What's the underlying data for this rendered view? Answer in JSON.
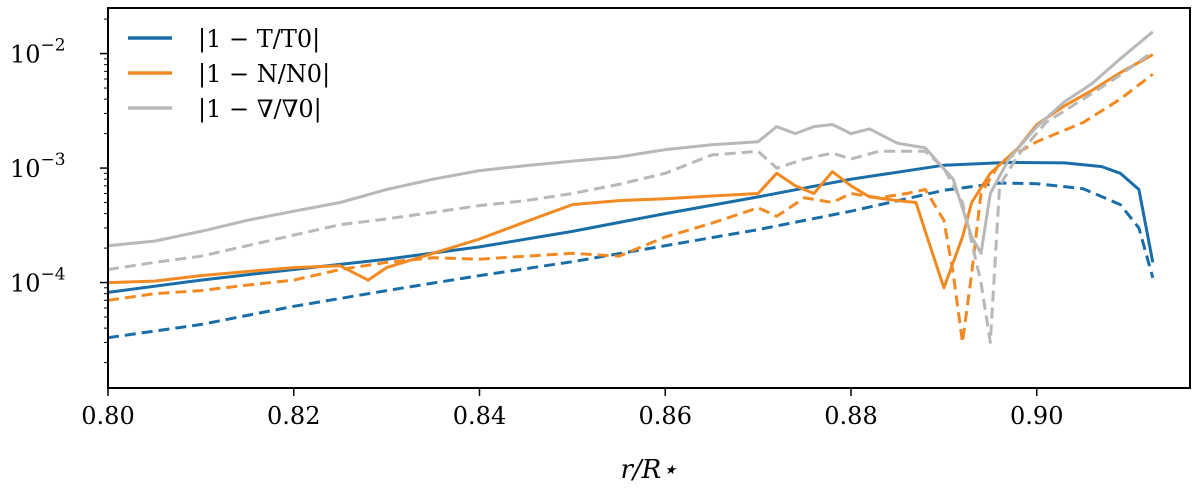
{
  "chart_data": {
    "type": "line",
    "title": "",
    "xlabel": "r/R⋆",
    "ylabel": "",
    "y_scale": "log",
    "xlim": [
      0.8,
      0.9165
    ],
    "ylim": [
      1.2e-05,
      0.025
    ],
    "grid": false,
    "legend_position": "top-left",
    "x_ticks": [
      "0.80",
      "0.82",
      "0.84",
      "0.86",
      "0.88",
      "0.90"
    ],
    "y_ticks": [
      {
        "base": "10",
        "exp": "−2"
      },
      {
        "base": "10",
        "exp": "−3"
      },
      {
        "base": "10",
        "exp": "−4"
      }
    ],
    "legend": [
      {
        "label": "|1 − T/T0|",
        "color": "#1a6ea8"
      },
      {
        "label": "|1 − N/N0|",
        "color": "#f28a24"
      },
      {
        "label": "|1 − ∇/∇0|",
        "color": "#b8b8b8"
      }
    ],
    "series": [
      {
        "name": "|1 − T/T0|",
        "style": "solid",
        "color": "#1a6ea8",
        "points": [
          [
            0.8,
            8.2e-05
          ],
          [
            0.81,
            0.000105
          ],
          [
            0.82,
            0.00013
          ],
          [
            0.83,
            0.00016
          ],
          [
            0.84,
            0.000205
          ],
          [
            0.85,
            0.00028
          ],
          [
            0.86,
            0.0004
          ],
          [
            0.87,
            0.00056
          ],
          [
            0.88,
            0.0008
          ],
          [
            0.89,
            0.00106
          ],
          [
            0.897,
            0.00112
          ],
          [
            0.903,
            0.00111
          ],
          [
            0.907,
            0.00103
          ],
          [
            0.909,
            0.0009
          ],
          [
            0.911,
            0.00065
          ],
          [
            0.9125,
            0.00015
          ]
        ]
      },
      {
        "name": "|1 − T/T0|",
        "style": "dashed",
        "color": "#1a6ea8",
        "points": [
          [
            0.8,
            3.3e-05
          ],
          [
            0.81,
            4.3e-05
          ],
          [
            0.82,
            6.2e-05
          ],
          [
            0.83,
            8.5e-05
          ],
          [
            0.84,
            0.000115
          ],
          [
            0.85,
            0.000152
          ],
          [
            0.86,
            0.00021
          ],
          [
            0.87,
            0.00029
          ],
          [
            0.88,
            0.00042
          ],
          [
            0.89,
            0.00064
          ],
          [
            0.896,
            0.00074
          ],
          [
            0.9,
            0.00073
          ],
          [
            0.905,
            0.00066
          ],
          [
            0.909,
            0.00048
          ],
          [
            0.911,
            0.0003
          ],
          [
            0.9125,
            0.00011
          ]
        ]
      },
      {
        "name": "|1 − N/N0|",
        "style": "solid",
        "color": "#f28a24",
        "points": [
          [
            0.8,
            0.0001
          ],
          [
            0.805,
            0.000103
          ],
          [
            0.81,
            0.000115
          ],
          [
            0.815,
            0.000125
          ],
          [
            0.82,
            0.000135
          ],
          [
            0.825,
            0.00014
          ],
          [
            0.828,
            0.000105
          ],
          [
            0.83,
            0.000135
          ],
          [
            0.835,
            0.00018
          ],
          [
            0.84,
            0.00024
          ],
          [
            0.845,
            0.00034
          ],
          [
            0.85,
            0.00048
          ],
          [
            0.855,
            0.00052
          ],
          [
            0.86,
            0.00054
          ],
          [
            0.865,
            0.00057
          ],
          [
            0.87,
            0.0006
          ],
          [
            0.872,
            0.0009
          ],
          [
            0.874,
            0.0007
          ],
          [
            0.876,
            0.0006
          ],
          [
            0.878,
            0.00093
          ],
          [
            0.88,
            0.0007
          ],
          [
            0.882,
            0.00056
          ],
          [
            0.885,
            0.00052
          ],
          [
            0.887,
            0.0005
          ],
          [
            0.888,
            0.00028
          ],
          [
            0.89,
            9e-05
          ],
          [
            0.891,
            0.00015
          ],
          [
            0.892,
            0.00025
          ],
          [
            0.893,
            0.0005
          ],
          [
            0.895,
            0.0009
          ],
          [
            0.898,
            0.0015
          ],
          [
            0.9,
            0.0024
          ],
          [
            0.903,
            0.0035
          ],
          [
            0.906,
            0.0048
          ],
          [
            0.909,
            0.0068
          ],
          [
            0.9125,
            0.0098
          ]
        ]
      },
      {
        "name": "|1 − N/N0|",
        "style": "dashed",
        "color": "#f28a24",
        "points": [
          [
            0.8,
            7e-05
          ],
          [
            0.805,
            8e-05
          ],
          [
            0.81,
            8.5e-05
          ],
          [
            0.815,
            9.5e-05
          ],
          [
            0.82,
            0.000105
          ],
          [
            0.825,
            0.00013
          ],
          [
            0.83,
            0.00015
          ],
          [
            0.835,
            0.000165
          ],
          [
            0.84,
            0.00016
          ],
          [
            0.845,
            0.00017
          ],
          [
            0.85,
            0.00018
          ],
          [
            0.855,
            0.00017
          ],
          [
            0.86,
            0.00025
          ],
          [
            0.865,
            0.00033
          ],
          [
            0.87,
            0.00045
          ],
          [
            0.872,
            0.00038
          ],
          [
            0.875,
            0.00055
          ],
          [
            0.878,
            0.0005
          ],
          [
            0.88,
            0.0006
          ],
          [
            0.883,
            0.00055
          ],
          [
            0.886,
            0.0006
          ],
          [
            0.888,
            0.00065
          ],
          [
            0.89,
            0.00035
          ],
          [
            0.891,
            0.00012
          ],
          [
            0.892,
            3e-05
          ],
          [
            0.893,
            0.00012
          ],
          [
            0.894,
            0.0006
          ],
          [
            0.896,
            0.0011
          ],
          [
            0.9,
            0.0017
          ],
          [
            0.905,
            0.0025
          ],
          [
            0.909,
            0.004
          ],
          [
            0.9125,
            0.0066
          ]
        ]
      },
      {
        "name": "|1 − ∇/∇0|",
        "style": "solid",
        "color": "#b8b8b8",
        "points": [
          [
            0.8,
            0.00021
          ],
          [
            0.805,
            0.00023
          ],
          [
            0.81,
            0.00028
          ],
          [
            0.815,
            0.00035
          ],
          [
            0.82,
            0.00042
          ],
          [
            0.825,
            0.0005
          ],
          [
            0.83,
            0.00065
          ],
          [
            0.835,
            0.0008
          ],
          [
            0.84,
            0.00095
          ],
          [
            0.845,
            0.00105
          ],
          [
            0.85,
            0.00115
          ],
          [
            0.855,
            0.00125
          ],
          [
            0.86,
            0.00145
          ],
          [
            0.865,
            0.0016
          ],
          [
            0.87,
            0.0017
          ],
          [
            0.872,
            0.0023
          ],
          [
            0.874,
            0.002
          ],
          [
            0.876,
            0.0023
          ],
          [
            0.878,
            0.0024
          ],
          [
            0.88,
            0.002
          ],
          [
            0.882,
            0.0022
          ],
          [
            0.885,
            0.00165
          ],
          [
            0.888,
            0.0015
          ],
          [
            0.891,
            0.0008
          ],
          [
            0.893,
            0.00025
          ],
          [
            0.894,
            0.00018
          ],
          [
            0.895,
            0.0006
          ],
          [
            0.897,
            0.0012
          ],
          [
            0.9,
            0.0023
          ],
          [
            0.903,
            0.0038
          ],
          [
            0.906,
            0.0055
          ],
          [
            0.909,
            0.009
          ],
          [
            0.9125,
            0.0155
          ]
        ]
      },
      {
        "name": "|1 − ∇/∇0|",
        "style": "dashed",
        "color": "#b8b8b8",
        "points": [
          [
            0.8,
            0.00013
          ],
          [
            0.805,
            0.00015
          ],
          [
            0.81,
            0.00017
          ],
          [
            0.815,
            0.00021
          ],
          [
            0.82,
            0.00026
          ],
          [
            0.825,
            0.00032
          ],
          [
            0.83,
            0.00036
          ],
          [
            0.835,
            0.00041
          ],
          [
            0.84,
            0.00047
          ],
          [
            0.845,
            0.00052
          ],
          [
            0.85,
            0.0006
          ],
          [
            0.855,
            0.00072
          ],
          [
            0.86,
            0.0009
          ],
          [
            0.865,
            0.0013
          ],
          [
            0.87,
            0.0014
          ],
          [
            0.872,
            0.001
          ],
          [
            0.875,
            0.0012
          ],
          [
            0.878,
            0.00135
          ],
          [
            0.88,
            0.0012
          ],
          [
            0.883,
            0.0014
          ],
          [
            0.886,
            0.0014
          ],
          [
            0.888,
            0.0014
          ],
          [
            0.89,
            0.001
          ],
          [
            0.892,
            0.0005
          ],
          [
            0.894,
            0.0001
          ],
          [
            0.895,
            3e-05
          ],
          [
            0.896,
            0.0007
          ],
          [
            0.898,
            0.0013
          ],
          [
            0.901,
            0.0025
          ],
          [
            0.905,
            0.004
          ],
          [
            0.909,
            0.0065
          ],
          [
            0.9125,
            0.0104
          ]
        ]
      }
    ]
  }
}
